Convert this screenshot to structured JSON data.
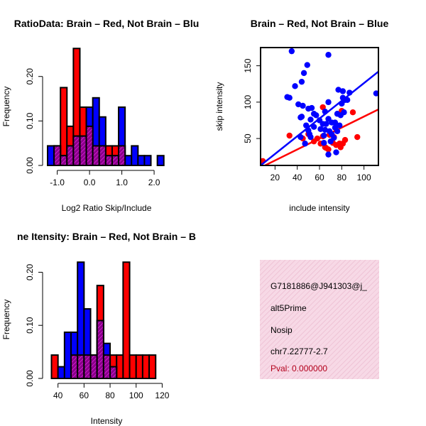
{
  "colors": {
    "red": "#ff0000",
    "blue": "#0000ff",
    "purple": "#8b008b"
  },
  "chart_data": [
    {
      "type": "bar",
      "subtype": "overlaid-histogram",
      "title": "RatioData: Brain – Red, Not Brain – Blu",
      "xlabel": "Log2 Ratio Skip/Include",
      "ylabel": "Frequency",
      "xlim": [
        -1.3,
        2.35
      ],
      "ylim": [
        0,
        0.265
      ],
      "xticks": [
        -1.0,
        0.0,
        1.0,
        2.0
      ],
      "xtick_labels": [
        "-1.0",
        "0.0",
        "1.0",
        "2.0"
      ],
      "yticks": [
        0.0,
        0.1,
        0.2
      ],
      "ytick_labels": [
        "0.00",
        "0.10",
        "0.20"
      ],
      "bin_edges": [
        -1.3,
        -1.1,
        -0.9,
        -0.7,
        -0.5,
        -0.3,
        -0.1,
        0.1,
        0.3,
        0.5,
        0.7,
        0.9,
        1.1,
        1.3,
        1.5,
        1.7,
        1.9,
        2.1,
        2.3
      ],
      "series": [
        {
          "name": "Brain",
          "color": "red",
          "values": [
            0,
            0.044,
            0.175,
            0.088,
            0.263,
            0.131,
            0.088,
            0.044,
            0.044,
            0.044,
            0.044,
            0.044,
            0,
            0,
            0,
            0,
            0,
            0
          ]
        },
        {
          "name": "Not Brain",
          "color": "blue",
          "values": [
            0.044,
            0.044,
            0.022,
            0.044,
            0.066,
            0.066,
            0.131,
            0.152,
            0.109,
            0.022,
            0.022,
            0.131,
            0.022,
            0.044,
            0.022,
            0.022,
            0,
            0.022
          ]
        }
      ]
    },
    {
      "type": "scatter",
      "title": "Brain – Red, Not Brain – Blue",
      "xlabel": "include intensity",
      "ylabel": "skip intensity",
      "xlim": [
        7,
        113
      ],
      "ylim": [
        13,
        175
      ],
      "xticks": [
        20,
        40,
        60,
        80,
        100
      ],
      "xtick_labels": [
        "20",
        "40",
        "60",
        "80",
        "100"
      ],
      "yticks": [
        50,
        100,
        150
      ],
      "ytick_labels": [
        "50",
        "100",
        "150"
      ],
      "series": [
        {
          "name": "Brain",
          "color": "red",
          "points": [
            [
              9,
              19
            ],
            [
              33,
              54
            ],
            [
              45,
              50
            ],
            [
              50,
              56
            ],
            [
              55,
              46
            ],
            [
              58,
              50
            ],
            [
              61,
              43
            ],
            [
              63,
              53
            ],
            [
              65,
              38
            ],
            [
              66,
              37
            ],
            [
              68,
              35
            ],
            [
              69,
              55
            ],
            [
              72,
              44
            ],
            [
              73,
              52
            ],
            [
              75,
              41
            ],
            [
              78,
              43
            ],
            [
              79,
              38
            ],
            [
              81,
              43
            ],
            [
              83,
              48
            ],
            [
              90,
              86
            ],
            [
              94,
              52
            ],
            [
              63,
              93
            ],
            [
              80,
              88
            ]
          ],
          "regression": [
            [
              7,
              10
            ],
            [
              113,
              90
            ]
          ]
        },
        {
          "name": "Not Brain",
          "color": "blue",
          "points": [
            [
              35,
              170
            ],
            [
              68,
              165
            ],
            [
              49,
              151
            ],
            [
              46,
              140
            ],
            [
              44,
              128
            ],
            [
              38,
              122
            ],
            [
              31,
              107
            ],
            [
              33,
              106
            ],
            [
              41,
              97
            ],
            [
              45,
              95
            ],
            [
              50,
              91
            ],
            [
              53,
              92
            ],
            [
              44,
              80
            ],
            [
              43,
              79
            ],
            [
              52,
              76
            ],
            [
              55,
              84
            ],
            [
              57,
              82
            ],
            [
              60,
              75
            ],
            [
              65,
              87
            ],
            [
              63,
              70
            ],
            [
              66,
              70
            ],
            [
              71,
              72
            ],
            [
              68,
              77
            ],
            [
              74,
              72
            ],
            [
              78,
              68
            ],
            [
              76,
              60
            ],
            [
              74,
              65
            ],
            [
              69,
              60
            ],
            [
              71,
              56
            ],
            [
              73,
              51
            ],
            [
              64,
              54
            ],
            [
              61,
              63
            ],
            [
              48,
              68
            ],
            [
              50,
              61
            ],
            [
              55,
              66
            ],
            [
              51,
              56
            ],
            [
              52,
              52
            ],
            [
              43,
              52
            ],
            [
              47,
              43
            ],
            [
              64,
              44
            ],
            [
              70,
              46
            ],
            [
              68,
              28
            ],
            [
              75,
              31
            ],
            [
              65,
              62
            ],
            [
              80,
              98
            ],
            [
              85,
              103
            ],
            [
              87,
              113
            ],
            [
              81,
              115
            ],
            [
              83,
              103
            ],
            [
              77,
              117
            ],
            [
              81,
              106
            ],
            [
              76,
              84
            ],
            [
              79,
              82
            ],
            [
              82,
              86
            ],
            [
              111,
              112
            ],
            [
              68,
              100
            ]
          ],
          "regression": [
            [
              7,
              13
            ],
            [
              113,
              142
            ]
          ]
        }
      ]
    },
    {
      "type": "bar",
      "subtype": "overlaid-histogram",
      "title": "ne Itensity: Brain – Red, Not Brain – B",
      "xlabel": "Intensity",
      "ylabel": "Frequency",
      "xlim": [
        32,
        122.5
      ],
      "ylim": [
        0,
        0.222
      ],
      "xticks": [
        40,
        60,
        80,
        100,
        120
      ],
      "xtick_labels": [
        "40",
        "60",
        "80",
        "100",
        "120"
      ],
      "yticks": [
        0.0,
        0.1,
        0.2
      ],
      "ytick_labels": [
        "0.00",
        "0.10",
        "0.20"
      ],
      "bin_edges": [
        35,
        40,
        45,
        50,
        55,
        60,
        65,
        70,
        75,
        80,
        85,
        90,
        95,
        100,
        105,
        110,
        115,
        120
      ],
      "series": [
        {
          "name": "Brain",
          "color": "red",
          "values": [
            0.044,
            0,
            0,
            0.044,
            0.044,
            0.044,
            0.044,
            0.175,
            0.044,
            0.044,
            0.044,
            0.219,
            0.044,
            0.044,
            0.044,
            0.044,
            0
          ]
        },
        {
          "name": "Not Brain",
          "color": "blue",
          "values": [
            0,
            0.022,
            0.087,
            0.087,
            0.219,
            0.131,
            0.044,
            0.109,
            0.066,
            0.022,
            0,
            0,
            0,
            0,
            0,
            0,
            0
          ]
        }
      ]
    }
  ],
  "info_panel": {
    "id": "G7181886@J941303@j_",
    "event": "alt5Prime",
    "gene": "Nosip",
    "location": "chr7.22777-2.7",
    "pval": "Pval: 0.000000"
  }
}
